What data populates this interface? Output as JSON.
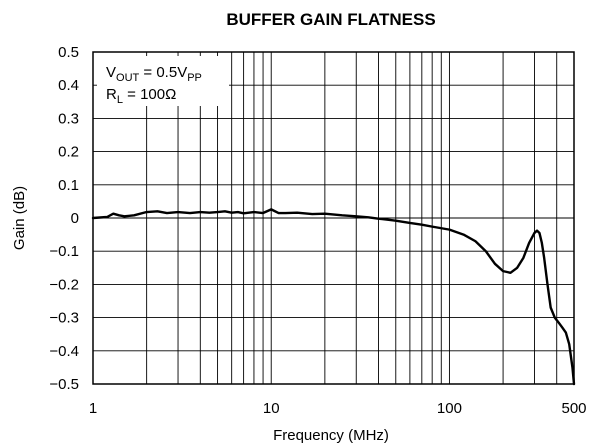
{
  "chart_data": {
    "type": "line",
    "title": "BUFFER GAIN FLATNESS",
    "xlabel": "Frequency (MHz)",
    "ylabel": "Gain (dB)",
    "x_scale": "log",
    "xlim": [
      1,
      500
    ],
    "ylim": [
      -0.5,
      0.5
    ],
    "grid": true,
    "x_tick_values": [
      1,
      10,
      100,
      500
    ],
    "x_tick_labels": [
      "1",
      "10",
      "100",
      "500"
    ],
    "y_tick_values": [
      0.5,
      0.4,
      0.3,
      0.2,
      0.1,
      0,
      -0.1,
      -0.2,
      -0.3,
      -0.4,
      -0.5
    ],
    "y_tick_labels": [
      "0.5",
      "0.4",
      "0.3",
      "0.2",
      "0.1",
      "0",
      "−0.1",
      "−0.2",
      "−0.3",
      "−0.4",
      "−0.5"
    ],
    "annotation": {
      "vout_main": "V",
      "vout_sub": "OUT",
      "vout_mid": " = 0.5V",
      "vout_sub2": "PP",
      "rl_main": "R",
      "rl_sub": "L",
      "rl_rest": " = 100Ω"
    },
    "series": [
      {
        "color": "#000000",
        "x": [
          1,
          1.2,
          1.3,
          1.4,
          1.5,
          1.7,
          2,
          2.3,
          2.6,
          3,
          3.5,
          4,
          4.5,
          5,
          5.5,
          6,
          6.5,
          7,
          8,
          9,
          10,
          11,
          12,
          14,
          17,
          20,
          25,
          30,
          35,
          40,
          45,
          50,
          60,
          70,
          80,
          100,
          120,
          140,
          160,
          180,
          200,
          220,
          240,
          260,
          280,
          300,
          310,
          320,
          330,
          340,
          355,
          370,
          390,
          410,
          430,
          450,
          470,
          490,
          500
        ],
        "y": [
          0,
          0.003,
          0.013,
          0.008,
          0.005,
          0.008,
          0.018,
          0.02,
          0.015,
          0.018,
          0.015,
          0.018,
          0.016,
          0.018,
          0.02,
          0.016,
          0.018,
          0.014,
          0.018,
          0.015,
          0.026,
          0.015,
          0.015,
          0.016,
          0.012,
          0.013,
          0.008,
          0.005,
          0.002,
          -0.002,
          -0.005,
          -0.008,
          -0.015,
          -0.02,
          -0.026,
          -0.035,
          -0.05,
          -0.07,
          -0.1,
          -0.138,
          -0.16,
          -0.165,
          -0.15,
          -0.12,
          -0.075,
          -0.045,
          -0.038,
          -0.045,
          -0.075,
          -0.12,
          -0.2,
          -0.27,
          -0.3,
          -0.315,
          -0.33,
          -0.345,
          -0.38,
          -0.45,
          -0.5
        ]
      }
    ]
  }
}
